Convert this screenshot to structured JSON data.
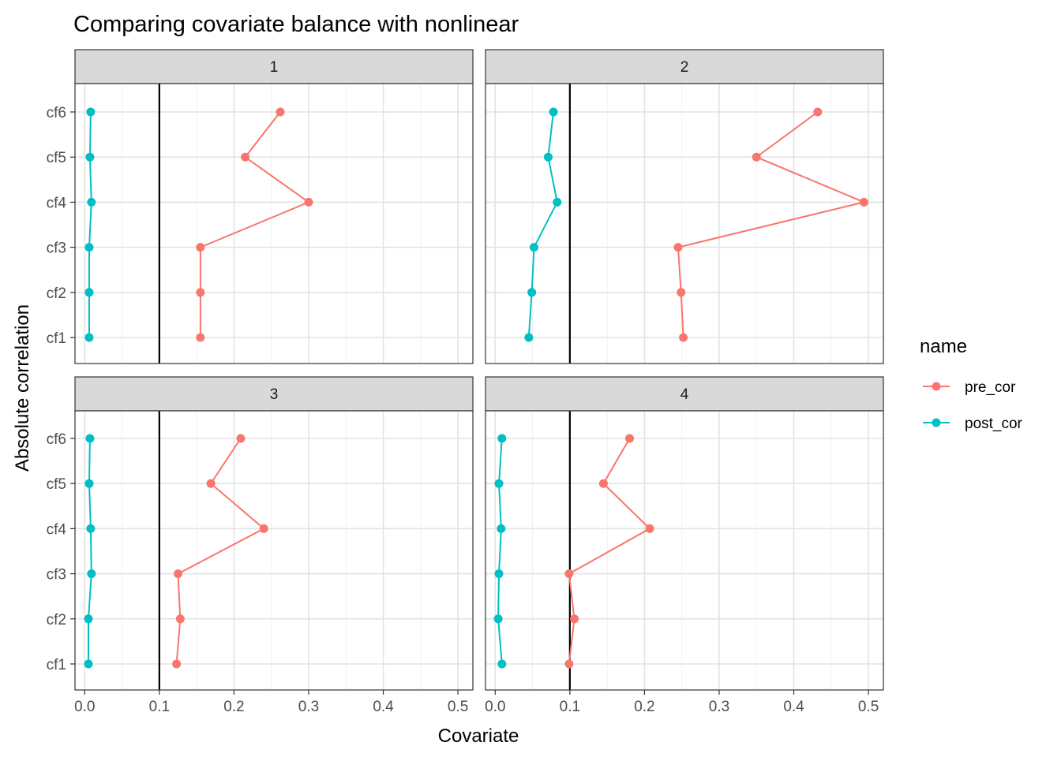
{
  "chart_data": {
    "type": "line",
    "title": "Comparing covariate balance with nonlinear",
    "xlabel": "Covariate",
    "ylabel": "Absolute correlation",
    "xlim": [
      -0.013,
      0.52
    ],
    "x_ticks": [
      0.0,
      0.1,
      0.2,
      0.3,
      0.4,
      0.5
    ],
    "x_tick_labels": [
      "0.0",
      "0.1",
      "0.2",
      "0.3",
      "0.4",
      "0.5"
    ],
    "categories": [
      "cf1",
      "cf2",
      "cf3",
      "cf4",
      "cf5",
      "cf6"
    ],
    "reference_line_x": 0.1,
    "grid": true,
    "legend": {
      "title": "name",
      "position": "right",
      "entries": [
        {
          "name": "pre_cor",
          "color": "#F8766D"
        },
        {
          "name": "post_cor",
          "color": "#00BFC4"
        }
      ]
    },
    "facets": [
      {
        "label": "1",
        "series": [
          {
            "name": "pre_cor",
            "values": [
              0.155,
              0.155,
              0.155,
              0.3,
              0.215,
              0.262
            ]
          },
          {
            "name": "post_cor",
            "values": [
              0.006,
              0.006,
              0.006,
              0.009,
              0.007,
              0.008
            ]
          }
        ]
      },
      {
        "label": "2",
        "series": [
          {
            "name": "pre_cor",
            "values": [
              0.252,
              0.249,
              0.245,
              0.494,
              0.35,
              0.432
            ]
          },
          {
            "name": "post_cor",
            "values": [
              0.045,
              0.049,
              0.052,
              0.083,
              0.071,
              0.078
            ]
          }
        ]
      },
      {
        "label": "3",
        "series": [
          {
            "name": "pre_cor",
            "values": [
              0.123,
              0.128,
              0.125,
              0.24,
              0.169,
              0.209
            ]
          },
          {
            "name": "post_cor",
            "values": [
              0.005,
              0.005,
              0.009,
              0.008,
              0.006,
              0.007
            ]
          }
        ]
      },
      {
        "label": "4",
        "series": [
          {
            "name": "pre_cor",
            "values": [
              0.099,
              0.106,
              0.099,
              0.207,
              0.145,
              0.18
            ]
          },
          {
            "name": "post_cor",
            "values": [
              0.009,
              0.004,
              0.005,
              0.008,
              0.005,
              0.009
            ]
          }
        ]
      }
    ]
  }
}
